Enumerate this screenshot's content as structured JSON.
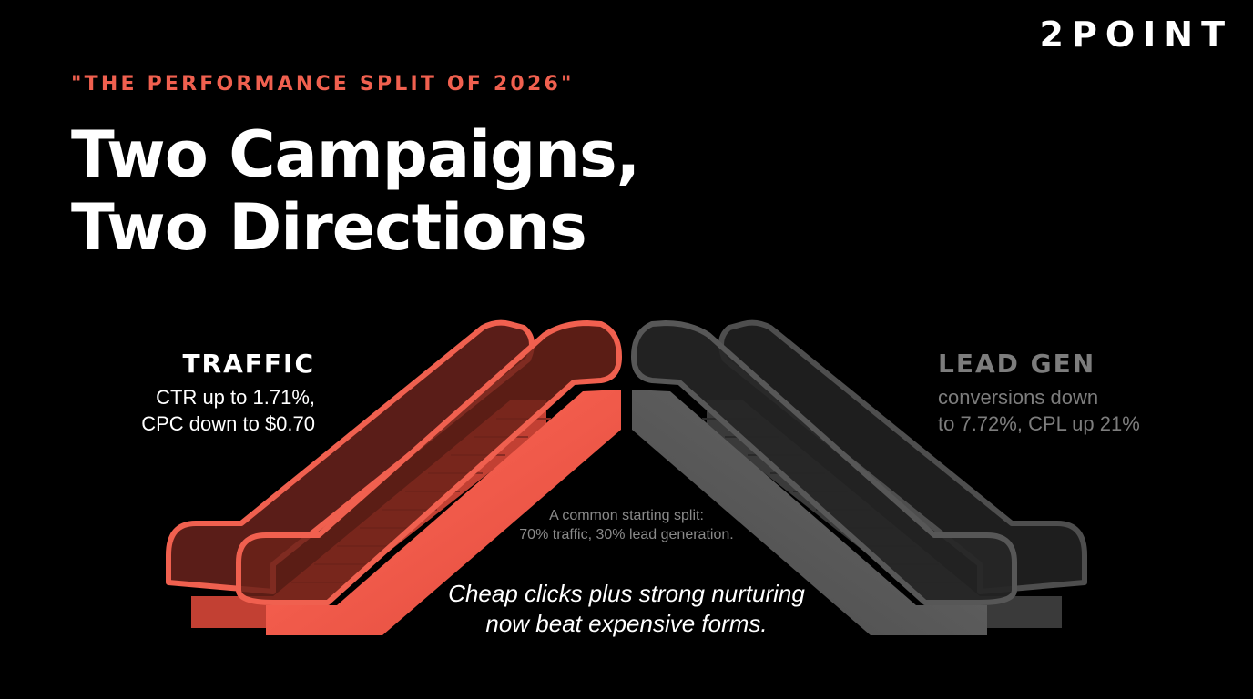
{
  "brand": {
    "logo": "2POINT"
  },
  "header": {
    "eyebrow": "\"THE PERFORMANCE SPLIT OF 2026\"",
    "title_line1": "Two Campaigns,",
    "title_line2": "Two Directions"
  },
  "traffic": {
    "heading": "TRAFFIC",
    "line1": "CTR up to 1.71%,",
    "line2": "CPC down to $0.70",
    "direction": "up",
    "color": "#f0604f"
  },
  "lead_gen": {
    "heading": "LEAD GEN",
    "line1": "conversions down",
    "line2": "to 7.72%, CPL up 21%",
    "direction": "down",
    "color": "#5c5c5c"
  },
  "note": {
    "line1": "A common starting split:",
    "line2": "70% traffic, 30% lead generation."
  },
  "tagline": {
    "line1": "Cheap clicks plus strong nurturing",
    "line2": "now beat expensive forms."
  },
  "illustration": {
    "icon": "escalator-pair-icon"
  }
}
